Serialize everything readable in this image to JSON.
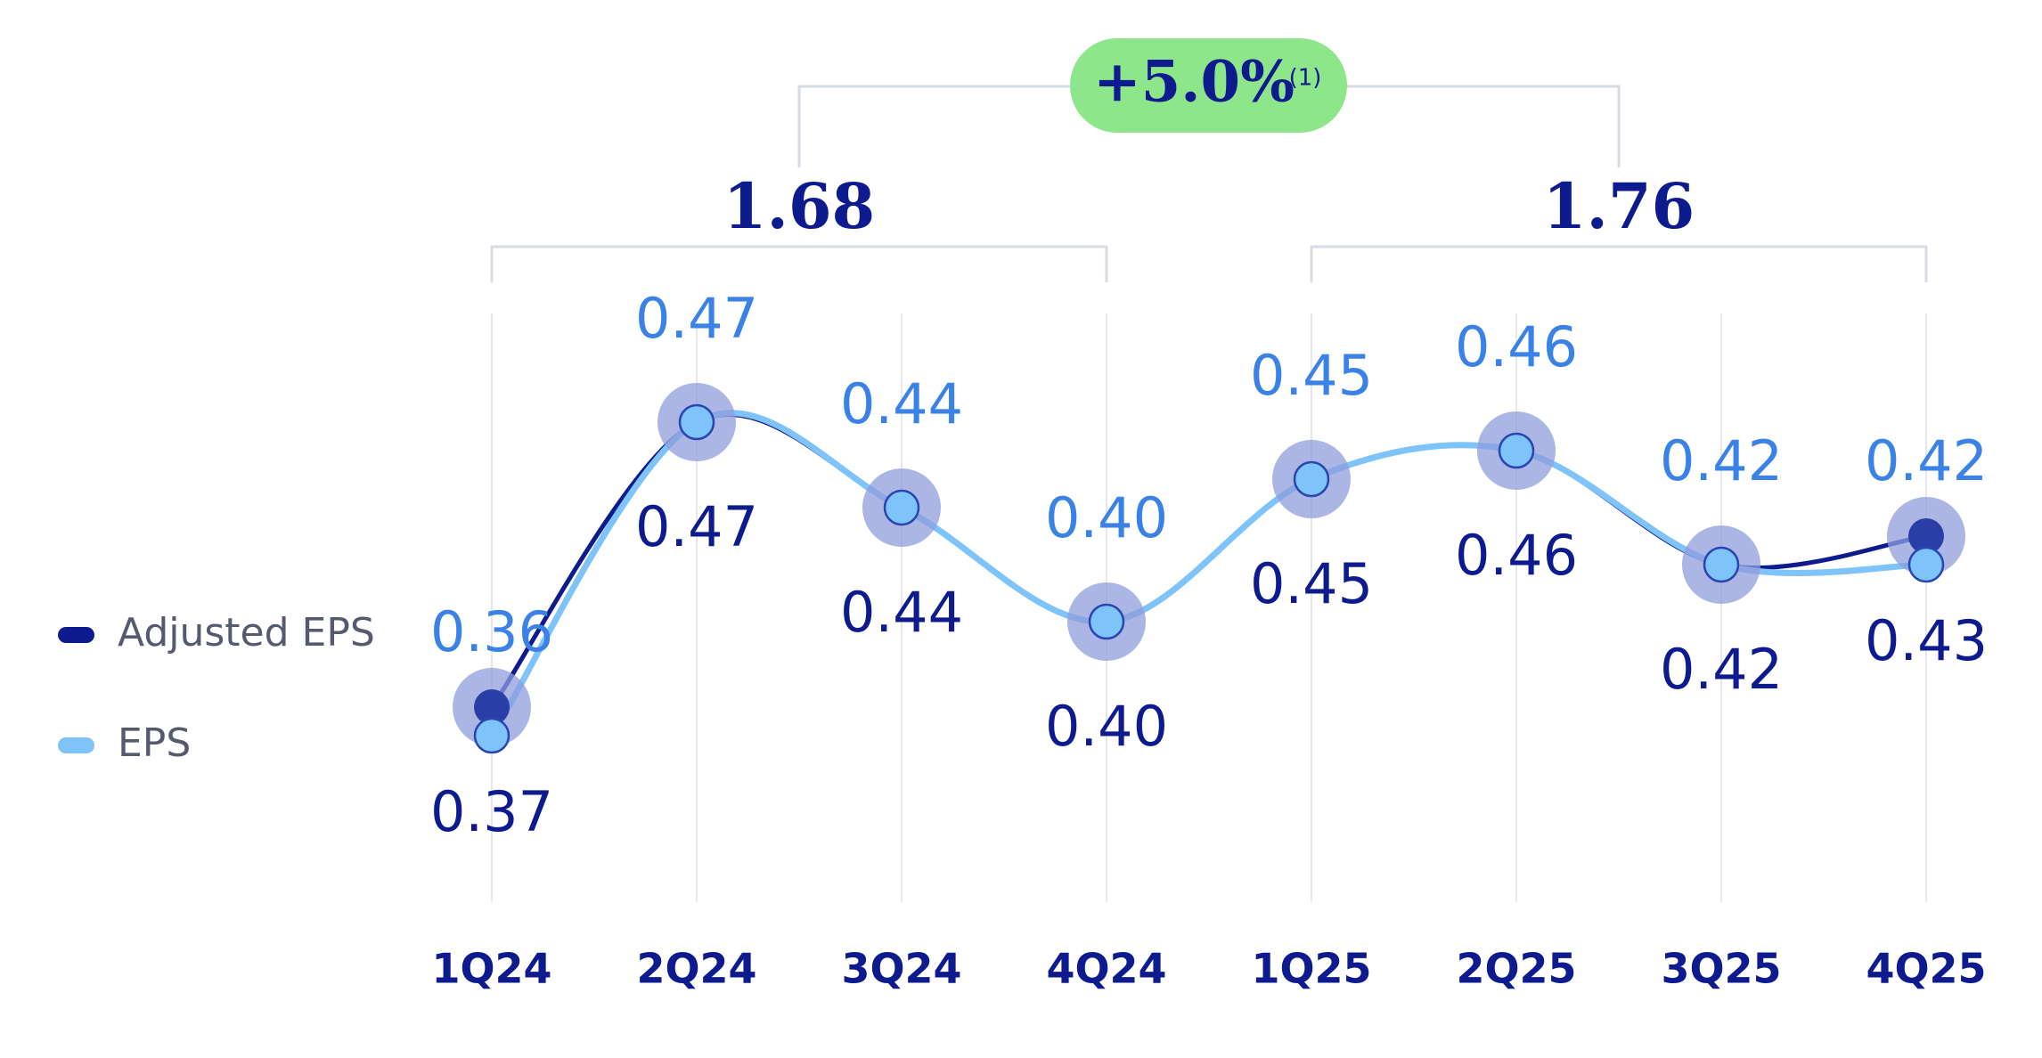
{
  "chart_data": {
    "type": "line",
    "categories": [
      "1Q24",
      "2Q24",
      "3Q24",
      "4Q24",
      "1Q25",
      "2Q25",
      "3Q25",
      "4Q25"
    ],
    "series": [
      {
        "name": "Adjusted EPS",
        "color": "#0d1b8e",
        "values": [
          0.37,
          0.47,
          0.44,
          0.4,
          0.45,
          0.46,
          0.42,
          0.43
        ],
        "value_labels": [
          "0.37",
          "0.47",
          "0.44",
          "0.40",
          "0.45",
          "0.46",
          "0.42",
          "0.43"
        ]
      },
      {
        "name": "EPS",
        "color": "#7ec3fa",
        "values": [
          0.36,
          0.47,
          0.44,
          0.4,
          0.45,
          0.46,
          0.42,
          0.42
        ],
        "value_labels": [
          "0.36",
          "0.47",
          "0.44",
          "0.40",
          "0.45",
          "0.46",
          "0.42",
          "0.42"
        ]
      }
    ],
    "totals": [
      1.68,
      1.76
    ],
    "growth_label": "+5.0%",
    "growth_note": "(1)"
  }
}
